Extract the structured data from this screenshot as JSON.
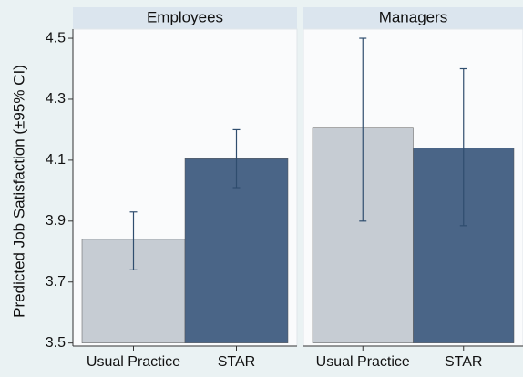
{
  "chart_data": [
    {
      "type": "bar",
      "title": "Employees",
      "ylabel": "Predicted Job Satisfaction (±95% CI)",
      "categories": [
        "Usual Practice",
        "STAR"
      ],
      "values": [
        3.84,
        4.105
      ],
      "ci_low": [
        3.74,
        4.01
      ],
      "ci_high": [
        3.93,
        4.2
      ],
      "colors": [
        "#c6ccd3",
        "#4a6587"
      ],
      "ylim": [
        3.49,
        4.53
      ],
      "yticks": [
        {
          "value": 3.5,
          "label": "3.5"
        },
        {
          "value": 3.7,
          "label": "3.7"
        },
        {
          "value": 3.9,
          "label": "3.9"
        },
        {
          "value": 4.1,
          "label": "4.1"
        },
        {
          "value": 4.3,
          "label": "4.3"
        },
        {
          "value": 4.5,
          "label": "4.5"
        }
      ]
    },
    {
      "type": "bar",
      "title": "Managers",
      "categories": [
        "Usual Practice",
        "STAR"
      ],
      "values": [
        4.205,
        4.14
      ],
      "ci_low": [
        3.9,
        3.885
      ],
      "ci_high": [
        4.5,
        4.4
      ],
      "colors": [
        "#c6ccd3",
        "#4a6587"
      ],
      "ylim": [
        3.49,
        4.53
      ]
    }
  ]
}
